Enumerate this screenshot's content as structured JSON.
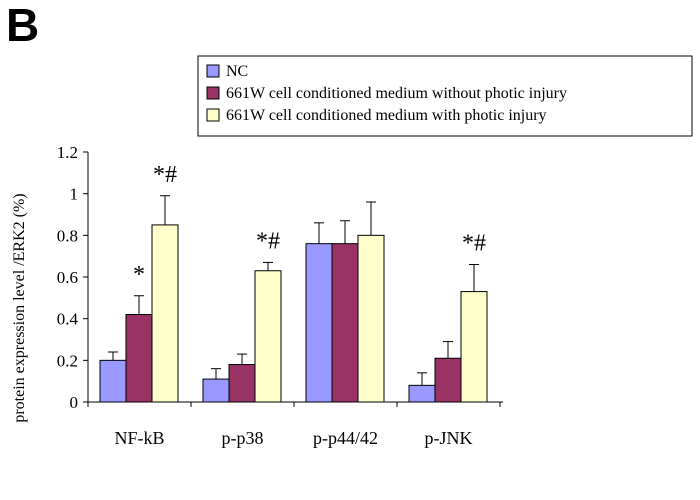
{
  "panel_label": "B",
  "chart_data": {
    "type": "bar",
    "title": "",
    "xlabel": "",
    "ylabel": "protein expression level /ERK2 (%)",
    "ylim": [
      0,
      1.2
    ],
    "yticks": [
      0,
      0.2,
      0.4,
      0.6,
      0.8,
      1,
      1.2
    ],
    "ytick_labels": [
      "0",
      "0.2",
      "0.4",
      "0.6",
      "0.8",
      "1",
      "1.2"
    ],
    "categories": [
      "NF-kB",
      "p-p38",
      "p-p44/42",
      "p-JNK"
    ],
    "legend_position": "top-right",
    "series": [
      {
        "name": "NC",
        "color": "#9999ff",
        "values": [
          0.2,
          0.11,
          0.76,
          0.08
        ],
        "errors": [
          0.04,
          0.05,
          0.1,
          0.06
        ]
      },
      {
        "name": "661W cell conditioned medium without photic injury",
        "color": "#993366",
        "values": [
          0.42,
          0.18,
          0.76,
          0.21
        ],
        "errors": [
          0.09,
          0.05,
          0.11,
          0.08
        ]
      },
      {
        "name": "661W cell conditioned medium with photic injury",
        "color": "#ffffcc",
        "values": [
          0.85,
          0.63,
          0.8,
          0.53
        ],
        "errors": [
          0.14,
          0.04,
          0.16,
          0.13
        ]
      }
    ],
    "annotations": [
      {
        "category": 0,
        "series": 1,
        "text": "*"
      },
      {
        "category": 0,
        "series": 2,
        "text": "*#"
      },
      {
        "category": 1,
        "series": 2,
        "text": "*#"
      },
      {
        "category": 3,
        "series": 2,
        "text": "*#"
      }
    ]
  }
}
